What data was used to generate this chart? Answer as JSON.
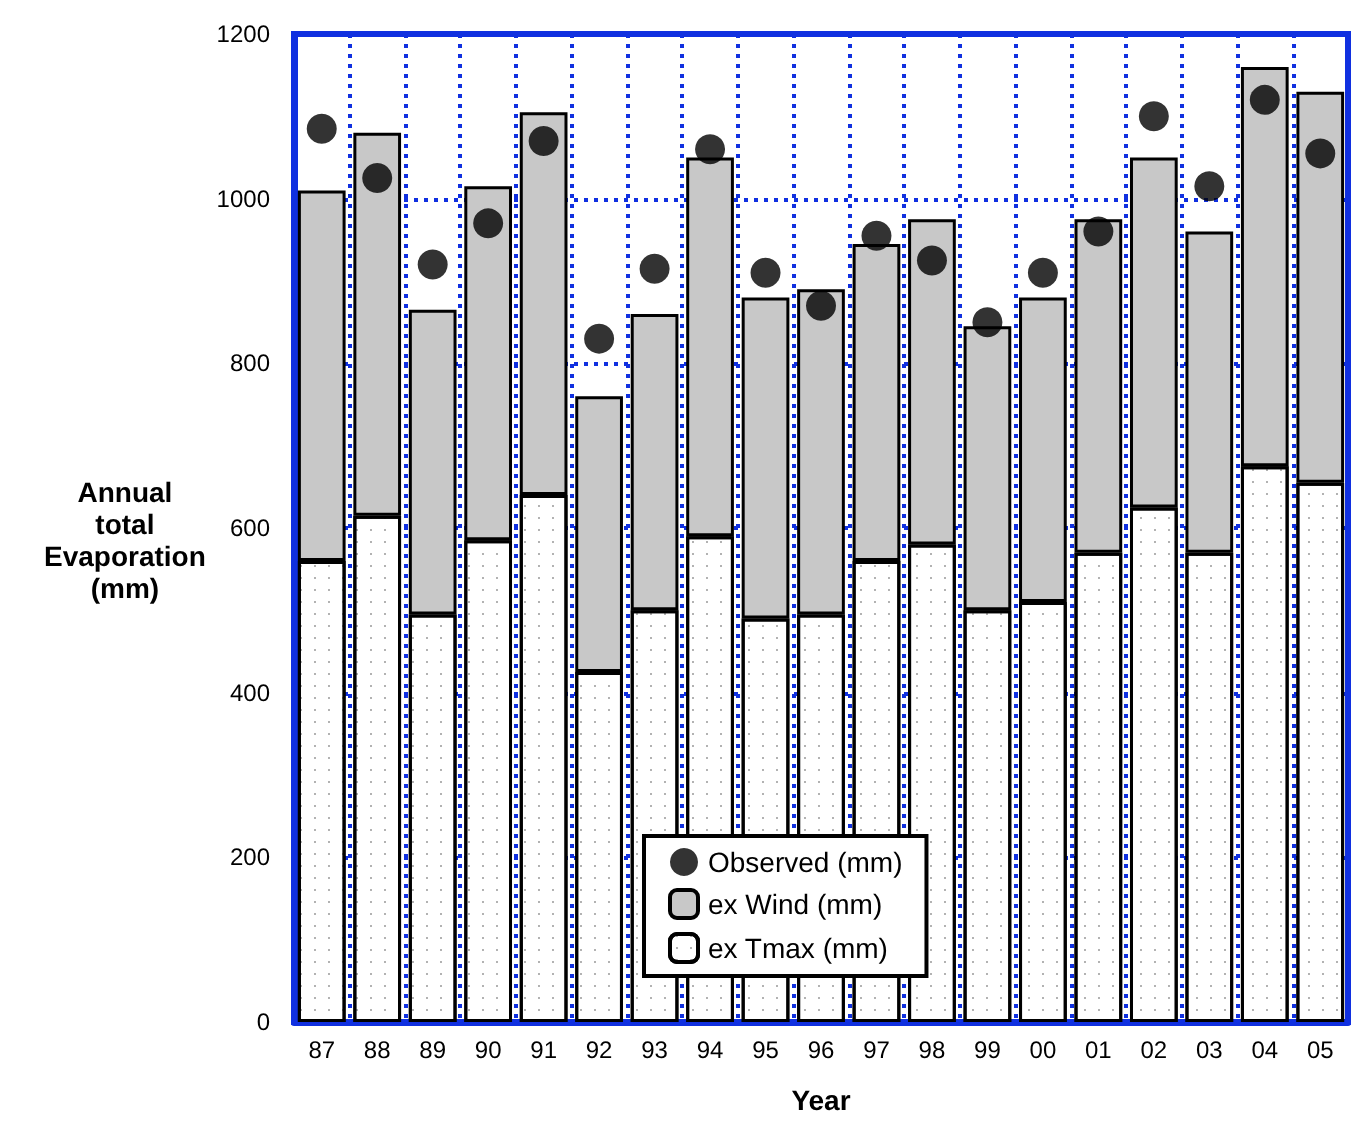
{
  "chart_data": {
    "type": "bar",
    "stacked": true,
    "xlabel": "Year",
    "ylabel": "Annual\ntotal\nEvaporation\n(mm)",
    "categories": [
      "87",
      "88",
      "89",
      "90",
      "91",
      "92",
      "93",
      "94",
      "95",
      "96",
      "97",
      "98",
      "99",
      "00",
      "01",
      "02",
      "03",
      "04",
      "05"
    ],
    "series": [
      {
        "name": "ex Tmax (mm)",
        "color": "#ffffff",
        "values": [
          560,
          615,
          495,
          585,
          640,
          425,
          500,
          590,
          490,
          495,
          560,
          580,
          500,
          510,
          570,
          625,
          570,
          675,
          655
        ]
      },
      {
        "name": "ex Wind (mm)",
        "color": "#c8c8c8",
        "values": [
          450,
          465,
          370,
          430,
          465,
          335,
          360,
          460,
          390,
          395,
          385,
          395,
          345,
          370,
          405,
          425,
          390,
          485,
          475
        ]
      },
      {
        "name": "Observed (mm)",
        "type": "scatter",
        "marker": "circle",
        "color": "#000000",
        "x": [
          "87",
          "88",
          "89",
          "90",
          "91",
          "92",
          "93",
          "94",
          "95",
          "96",
          "97",
          "98",
          "99",
          "00",
          "01",
          "02",
          "03",
          "04",
          "05"
        ],
        "values": [
          1085,
          1025,
          920,
          970,
          1070,
          830,
          915,
          1060,
          910,
          870,
          955,
          925,
          850,
          910,
          960,
          1100,
          1015,
          1120,
          1055
        ]
      }
    ],
    "ylim": [
      0,
      1200
    ],
    "yticks": [
      0,
      200,
      400,
      600,
      800,
      1000,
      1200
    ],
    "grid": true,
    "legend": "bottom"
  }
}
